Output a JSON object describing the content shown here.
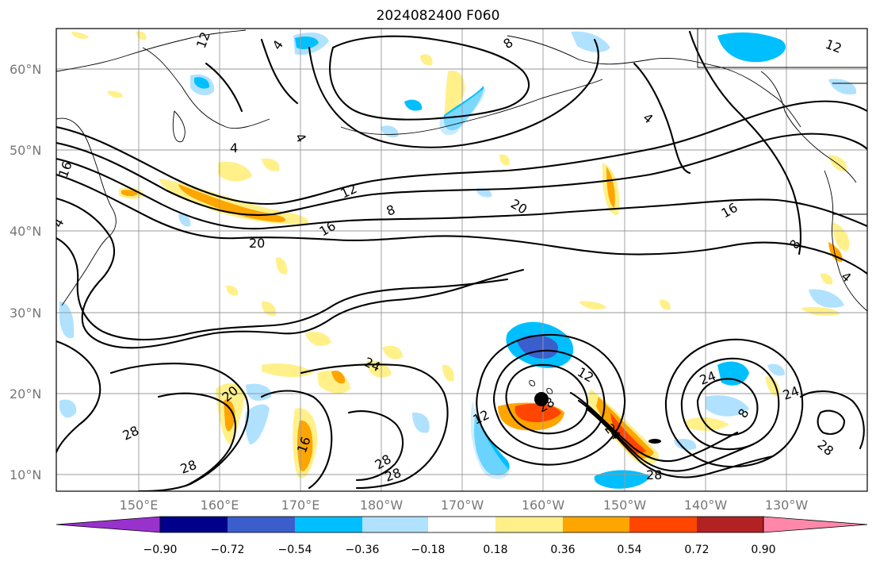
{
  "title": "2024082400 F060",
  "map": {
    "lat_labels": [
      "60°N",
      "50°N",
      "40°N",
      "30°N",
      "20°N",
      "10°N"
    ],
    "lon_labels": [
      "150°E",
      "160°E",
      "170°E",
      "180°W",
      "170°W",
      "160°W",
      "150°W",
      "140°W",
      "130°W"
    ],
    "contour_labels": [
      {
        "text": "12"
      },
      {
        "text": "4"
      },
      {
        "text": "8"
      },
      {
        "text": "4"
      },
      {
        "text": "4"
      },
      {
        "text": "16"
      },
      {
        "text": "12"
      },
      {
        "text": "8"
      },
      {
        "text": "20"
      },
      {
        "text": "16"
      },
      {
        "text": "20"
      },
      {
        "text": "16"
      },
      {
        "text": "8"
      },
      {
        "text": "12"
      },
      {
        "text": "4"
      },
      {
        "text": "4"
      },
      {
        "text": "24"
      },
      {
        "text": "20"
      },
      {
        "text": "28"
      },
      {
        "text": "28"
      },
      {
        "text": "16"
      },
      {
        "text": "28"
      },
      {
        "text": "28"
      },
      {
        "text": "12"
      },
      {
        "text": "12"
      },
      {
        "text": "28"
      },
      {
        "text": "24"
      },
      {
        "text": "28"
      },
      {
        "text": "24"
      },
      {
        "text": "24"
      },
      {
        "text": "8"
      },
      {
        "text": "28"
      },
      {
        "text": "4"
      }
    ]
  },
  "colorbar": {
    "ticks": [
      "−0.90",
      "−0.72",
      "−0.54",
      "−0.36",
      "−0.18",
      "0.18",
      "0.36",
      "0.54",
      "0.72",
      "0.90"
    ],
    "colors": [
      "#9932cc",
      "#00008b",
      "#3a5fcd",
      "#00bfff",
      "#b0e2ff",
      "#ffffff",
      "#fff08a",
      "#ffa500",
      "#ff4500",
      "#b22222",
      "#ff88aa"
    ]
  }
}
